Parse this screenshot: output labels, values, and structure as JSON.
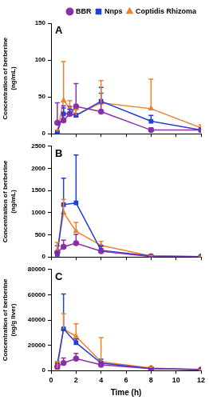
{
  "chart_data": [
    {
      "type": "line",
      "title": "A",
      "ylabel": [
        "Concentration of berberine",
        "(ng/mL)"
      ],
      "x": [
        0.5,
        1,
        1.5,
        2,
        4,
        8,
        12
      ],
      "xlim": [
        0,
        12
      ],
      "xticks": [
        0,
        2,
        4,
        6,
        8,
        10,
        12
      ],
      "ylim": [
        0,
        150
      ],
      "yticks": [
        0,
        50,
        100,
        150
      ],
      "grid": false,
      "tick_labels": "y",
      "legend": "top right",
      "series": [
        {
          "name": "BBR",
          "color": "#8a2fa8",
          "marker": "circle",
          "values": [
            15,
            18,
            27,
            37,
            30,
            5,
            5
          ],
          "errors": [
            27,
            20,
            10,
            31,
            25,
            3,
            2
          ]
        },
        {
          "name": "Nnps",
          "color": "#2040d8",
          "marker": "square",
          "values": [
            2,
            27,
            27,
            25,
            44,
            17,
            5
          ],
          "errors": [
            1,
            8,
            6,
            8,
            19,
            8,
            3
          ]
        },
        {
          "name": "Coptidis Rhizoma",
          "color": "#f0822a",
          "marker": "triangle",
          "values": [
            3,
            45,
            35,
            25,
            42,
            34,
            8
          ],
          "errors": [
            2,
            53,
            10,
            8,
            30,
            40,
            4
          ]
        }
      ]
    },
    {
      "type": "line",
      "title": "B",
      "ylabel": [
        "Concentration of berberine",
        "(ng/mL)"
      ],
      "x": [
        0.5,
        1,
        2,
        4,
        8,
        12
      ],
      "xlim": [
        0,
        12
      ],
      "xticks": [
        0,
        2,
        4,
        6,
        8,
        10,
        12
      ],
      "ylim": [
        0,
        2500
      ],
      "yticks": [
        0,
        500,
        1000,
        1500,
        2000,
        2500
      ],
      "grid": false,
      "tick_labels": "y",
      "series": [
        {
          "color": "#8a2fa8",
          "marker": "circle",
          "values": [
            100,
            230,
            310,
            130,
            10,
            5
          ],
          "errors": [
            150,
            150,
            200,
            120,
            10,
            5
          ]
        },
        {
          "color": "#2040d8",
          "marker": "square",
          "values": [
            60,
            1180,
            1220,
            150,
            20,
            10
          ],
          "errors": [
            40,
            600,
            1080,
            100,
            10,
            5
          ]
        },
        {
          "color": "#f0822a",
          "marker": "triangle",
          "values": [
            150,
            1000,
            580,
            260,
            20,
            10
          ],
          "errors": [
            180,
            300,
            200,
            90,
            10,
            5
          ]
        }
      ]
    },
    {
      "type": "line",
      "title": "C",
      "ylabel": [
        "Concentration of berberine",
        "(ng/g liver)"
      ],
      "xlabel": "Time (h)",
      "x": [
        0.5,
        1,
        2,
        4,
        8,
        12
      ],
      "xlim": [
        0,
        12
      ],
      "xticks": [
        0,
        2,
        4,
        6,
        8,
        10,
        12
      ],
      "ylim": [
        0,
        80000
      ],
      "yticks": [
        0,
        20000,
        40000,
        60000,
        80000
      ],
      "grid": false,
      "series": [
        {
          "color": "#8a2fa8",
          "marker": "circle",
          "values": [
            3000,
            6000,
            9500,
            4500,
            1500,
            700
          ],
          "errors": [
            2000,
            4000,
            4000,
            2000,
            500,
            300
          ]
        },
        {
          "color": "#2040d8",
          "marker": "square",
          "values": [
            5000,
            33000,
            22000,
            6000,
            1500,
            900
          ],
          "errors": [
            2000,
            27500,
            3000,
            3000,
            500,
            300
          ]
        },
        {
          "color": "#f0822a",
          "marker": "triangle",
          "values": [
            2000,
            33000,
            27000,
            7000,
            2000,
            500
          ],
          "errors": [
            5000,
            12000,
            10000,
            19000,
            800,
            300
          ]
        }
      ]
    }
  ]
}
